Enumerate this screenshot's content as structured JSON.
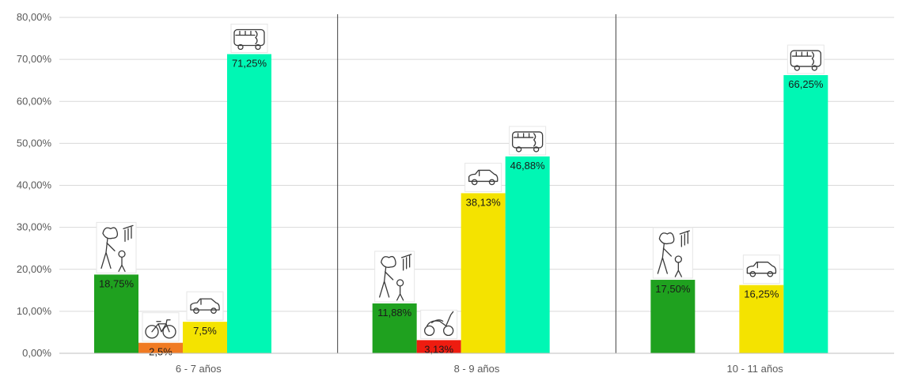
{
  "chart_data": {
    "type": "bar",
    "categories": [
      "6 - 7 años",
      "8 - 9 años",
      "10 - 11 años"
    ],
    "ylim": [
      0,
      80
    ],
    "yticks": [
      "0,00%",
      "10,00%",
      "20,00%",
      "30,00%",
      "40,00%",
      "50,00%",
      "60,00%",
      "70,00%",
      "80,00%"
    ],
    "grid": true,
    "series": [
      {
        "color": "#1fa11f",
        "icon": "walking-person-icon",
        "values": [
          18.75,
          11.88,
          17.5
        ],
        "labels": [
          "18,75%",
          "11,88%",
          "17,50%"
        ]
      },
      {
        "colors": [
          "#f07a22",
          "#ee1c10",
          "#ee1c10"
        ],
        "icons": [
          "bicycle-icon",
          "scooter-icon",
          null
        ],
        "values": [
          2.5,
          3.13,
          0
        ],
        "labels": [
          "2,5%",
          "3,13%",
          ""
        ]
      },
      {
        "color": "#f4e300",
        "icon": "car-icon",
        "values": [
          7.5,
          38.13,
          16.25
        ],
        "labels": [
          "7,5%",
          "38,13%",
          "16,25%"
        ]
      },
      {
        "color": "#00f7b4",
        "icon": "bus-icon",
        "values": [
          71.25,
          46.88,
          66.25
        ],
        "labels": [
          "71,25%",
          "46,88%",
          "66,25%"
        ]
      }
    ]
  }
}
